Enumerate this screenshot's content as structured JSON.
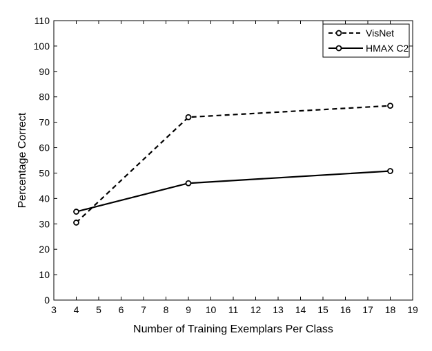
{
  "chart_data": {
    "type": "line",
    "title": "",
    "xlabel": "Number of Training Exemplars Per Class",
    "ylabel": "Percentage Correct",
    "xlim": [
      3,
      19
    ],
    "ylim": [
      0,
      110
    ],
    "x_ticks": [
      3,
      4,
      5,
      6,
      7,
      8,
      9,
      10,
      11,
      12,
      13,
      14,
      15,
      16,
      17,
      18,
      19
    ],
    "y_ticks": [
      0,
      10,
      20,
      30,
      40,
      50,
      60,
      70,
      80,
      90,
      100,
      110
    ],
    "grid": false,
    "legend_position": "top-right",
    "series": [
      {
        "name": "VisNet",
        "style": "dashed",
        "marker": "circle",
        "color": "#000000",
        "x": [
          4,
          9,
          18
        ],
        "y": [
          30.5,
          72,
          76.5
        ]
      },
      {
        "name": "HMAX C2",
        "style": "solid",
        "marker": "circle",
        "color": "#000000",
        "x": [
          4,
          9,
          18
        ],
        "y": [
          34.8,
          46,
          50.8
        ]
      }
    ]
  }
}
